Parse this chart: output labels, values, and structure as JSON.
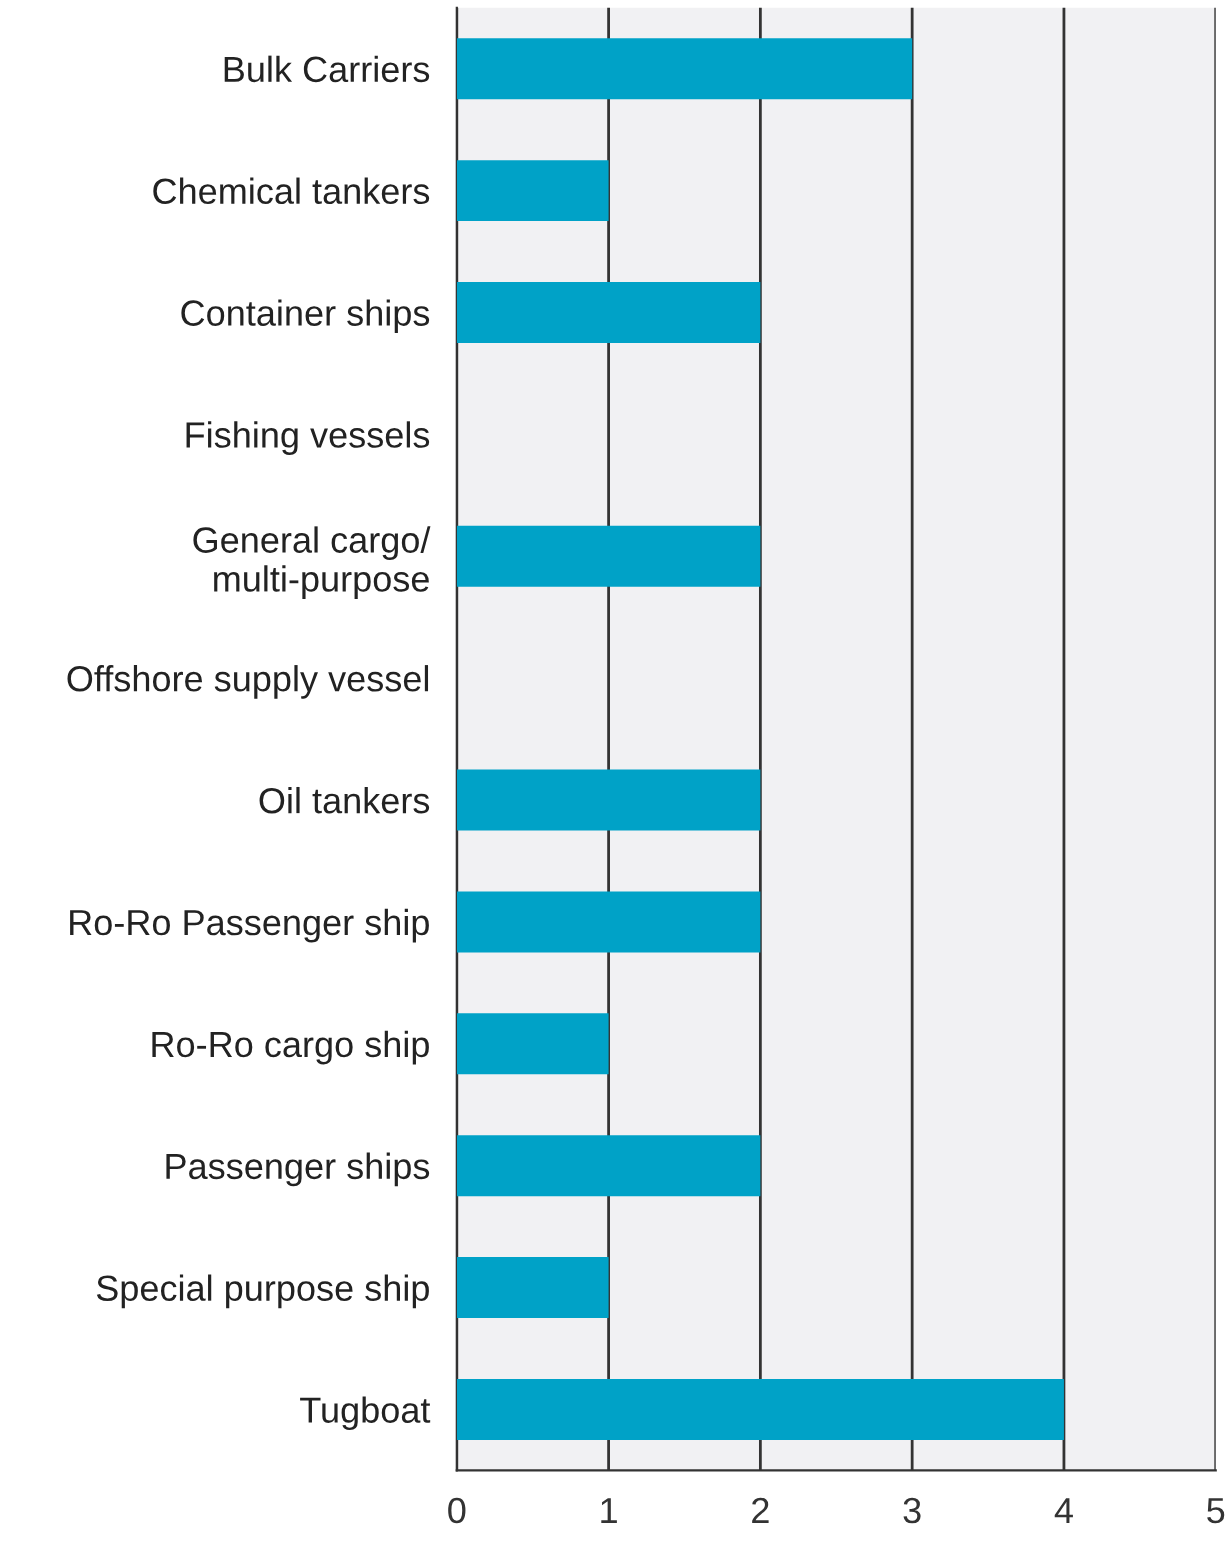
{
  "chart_data": {
    "type": "bar",
    "orientation": "horizontal",
    "categories": [
      "Bulk Carriers",
      "Chemical tankers",
      "Container ships",
      "Fishing vessels",
      "General cargo/\nmulti-purpose",
      "Offshore supply vessel",
      "Oil tankers",
      "Ro-Ro Passenger ship",
      "Ro-Ro cargo ship",
      "Passenger ships",
      "Special purpose ship",
      "Tugboat"
    ],
    "values": [
      3,
      1,
      2,
      0,
      2,
      0,
      2,
      2,
      1,
      2,
      1,
      4
    ],
    "color": "#00a2c7",
    "xlim": [
      0,
      5
    ],
    "xticks": [
      0,
      1,
      2,
      3,
      4,
      5
    ],
    "grid": "x"
  }
}
